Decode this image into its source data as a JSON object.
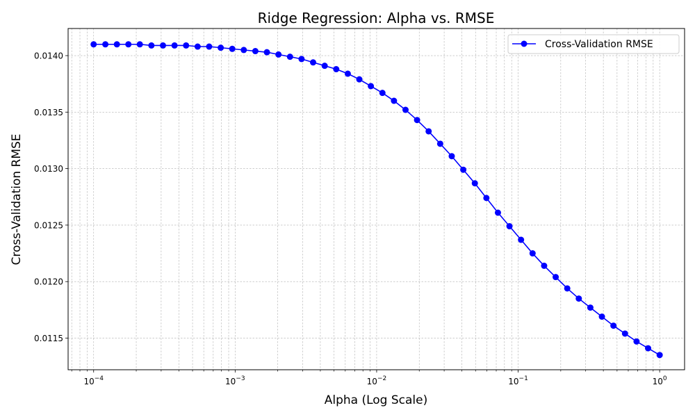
{
  "chart_data": {
    "type": "line",
    "title": "Ridge Regression: Alpha vs. RMSE",
    "xlabel": "Alpha (Log Scale)",
    "ylabel": "Cross-Validation RMSE",
    "xscale": "log",
    "xlim": [
      6.6e-05,
      1.5
    ],
    "ylim": [
      0.01122,
      0.01424
    ],
    "x_ticks": [
      {
        "value": 0.0001,
        "base": "10",
        "exp": "−4"
      },
      {
        "value": 0.001,
        "base": "10",
        "exp": "−3"
      },
      {
        "value": 0.01,
        "base": "10",
        "exp": "−2"
      },
      {
        "value": 0.1,
        "base": "10",
        "exp": "−1"
      },
      {
        "value": 1,
        "base": "10",
        "exp": "0"
      }
    ],
    "y_ticks": [
      {
        "value": 0.0115,
        "label": "0.0115"
      },
      {
        "value": 0.012,
        "label": "0.0120"
      },
      {
        "value": 0.0125,
        "label": "0.0125"
      },
      {
        "value": 0.013,
        "label": "0.0130"
      },
      {
        "value": 0.0135,
        "label": "0.0135"
      },
      {
        "value": 0.014,
        "label": "0.0140"
      }
    ],
    "grid": true,
    "legend_position": "top-right",
    "series": [
      {
        "name": "Cross-Validation RMSE",
        "color": "#0000ff",
        "marker": "circle",
        "x": [
          0.0001,
          0.000121,
          0.000146,
          0.000176,
          0.000212,
          0.000256,
          0.000309,
          0.000373,
          0.00045,
          0.000543,
          0.000655,
          0.000791,
          0.000954,
          0.001151,
          0.001389,
          0.001677,
          0.002024,
          0.002442,
          0.002947,
          0.003556,
          0.004292,
          0.005179,
          0.006251,
          0.007543,
          0.009103,
          0.010985,
          0.013257,
          0.015999,
          0.019307,
          0.0233,
          0.028118,
          0.033932,
          0.040949,
          0.049417,
          0.059636,
          0.071969,
          0.086851,
          0.104811,
          0.126486,
          0.152642,
          0.184207,
          0.2223,
          0.26827,
          0.323746,
          0.390694,
          0.471487,
          0.568987,
          0.686649,
          0.828643,
          1.0
        ],
        "y": [
          0.0141,
          0.0141,
          0.0141,
          0.0141,
          0.0141,
          0.01409,
          0.01409,
          0.01409,
          0.01409,
          0.01408,
          0.01408,
          0.01407,
          0.01406,
          0.01405,
          0.01404,
          0.01403,
          0.01401,
          0.01399,
          0.01397,
          0.01394,
          0.01391,
          0.01388,
          0.01384,
          0.01379,
          0.01373,
          0.01367,
          0.0136,
          0.01352,
          0.01343,
          0.01333,
          0.01322,
          0.01311,
          0.01299,
          0.01287,
          0.01274,
          0.01261,
          0.01249,
          0.01237,
          0.01225,
          0.01214,
          0.01204,
          0.01194,
          0.01185,
          0.01177,
          0.01169,
          0.01161,
          0.01154,
          0.01147,
          0.01141,
          0.01135
        ]
      }
    ]
  }
}
